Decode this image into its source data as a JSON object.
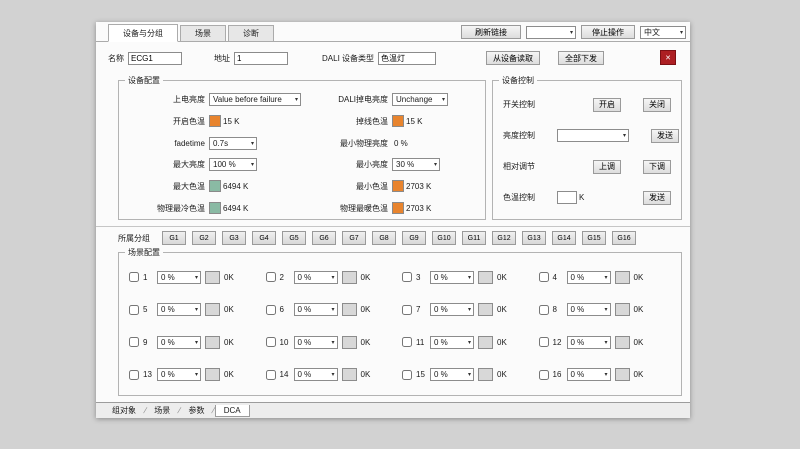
{
  "theme": {
    "orange": "#e8842e",
    "teal": "#8abaa4",
    "close_red": "#ad1f23"
  },
  "icons": {
    "chevron": "▾",
    "close": "✕"
  },
  "top_tabs": {
    "items": [
      {
        "label": "设备与分组"
      },
      {
        "label": "场景"
      },
      {
        "label": "诊断"
      }
    ]
  },
  "toolbar": {
    "refresh_button": "刷新链接",
    "connection_value": "",
    "stop_button": "停止操作",
    "language_value": "中文"
  },
  "device_form": {
    "name_label": "名称",
    "name_value": "ECG1",
    "address_label": "地址",
    "address_value": "1",
    "type_label": "DALI 设备类型",
    "type_value": "色温灯",
    "read_button": "从设备读取",
    "send_all_button": "全部下发"
  },
  "device_config": {
    "title": "设备配置",
    "left_rows": [
      {
        "label": "上电亮度",
        "value": "Value before failure"
      },
      {
        "label": "开启色温",
        "value": "15 K"
      },
      {
        "label": "fadetime",
        "value": "0.7s"
      },
      {
        "label": "最大亮度",
        "value": "100 %"
      },
      {
        "label": "最大色温",
        "value": "6494 K"
      },
      {
        "label": "物理最冷色温",
        "value": "6494 K"
      }
    ],
    "right_rows": [
      {
        "label": "DALI掉电亮度",
        "value": "Unchange"
      },
      {
        "label": "掉线色温",
        "value": "15 K"
      },
      {
        "label": "最小物理亮度",
        "value": "0 %"
      },
      {
        "label": "最小亮度",
        "value": "30 %"
      },
      {
        "label": "最小色温",
        "value": "2703 K"
      },
      {
        "label": "物理最暖色温",
        "value": "2703 K"
      }
    ]
  },
  "device_control": {
    "title": "设备控制",
    "switch_label": "开关控制",
    "on_button": "开启",
    "off_button": "关闭",
    "brightness_label": "亮度控制",
    "brightness_value": "",
    "send_button1": "发送",
    "relative_label": "相对调节",
    "up_button": "上调",
    "down_button": "下调",
    "temp_label": "色温控制",
    "temp_value": "",
    "temp_unit": "K",
    "send_button2": "发送"
  },
  "groups": {
    "label": "所属分组",
    "buttons": [
      "G1",
      "G2",
      "G3",
      "G4",
      "G5",
      "G6",
      "G7",
      "G8",
      "G9",
      "G10",
      "G11",
      "G12",
      "G13",
      "G14",
      "G15",
      "G16"
    ]
  },
  "scene_config": {
    "title": "场景配置",
    "brightness_value": "0 %",
    "temp_value": "0K",
    "scenes": [
      "1",
      "2",
      "3",
      "4",
      "5",
      "6",
      "7",
      "8",
      "9",
      "10",
      "11",
      "12",
      "13",
      "14",
      "15",
      "16"
    ]
  },
  "bottom_tabs": {
    "items": [
      {
        "label": "组对象"
      },
      {
        "label": "场景"
      },
      {
        "label": "参数"
      },
      {
        "label": "DCA"
      }
    ],
    "active_index": 3
  }
}
